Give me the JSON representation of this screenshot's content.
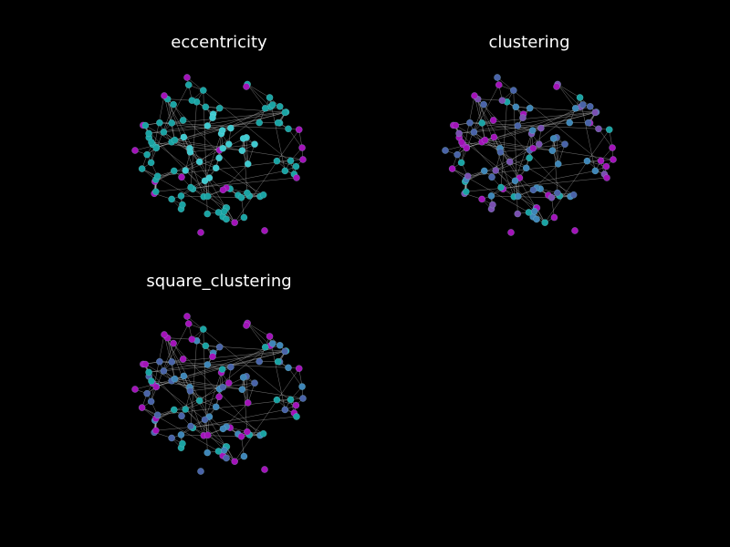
{
  "figure": {
    "background": "#000000",
    "edge_color": "#d0d0d0",
    "node_colors": {
      "teal": "#1aa3a3",
      "cyan": "#3fc9cf",
      "blue": "#3f86b8",
      "slate": "#4a63a8",
      "violet": "#7a4fb0",
      "magenta": "#a313b8"
    }
  },
  "panels": [
    {
      "title": "eccentricity",
      "palette": [
        "#a313b8",
        "#1aa3a3",
        "#3fc9cf"
      ],
      "bias": 0.35
    },
    {
      "title": "clustering",
      "palette": [
        "#4a63a8",
        "#3f86b8",
        "#7a4fb0",
        "#a313b8",
        "#1aa3a3"
      ],
      "bias": 0.0
    },
    {
      "title": "square_clustering",
      "palette": [
        "#3f86b8",
        "#1aa3a3",
        "#4a63a8",
        "#a313b8"
      ],
      "bias": 0.55
    }
  ]
}
